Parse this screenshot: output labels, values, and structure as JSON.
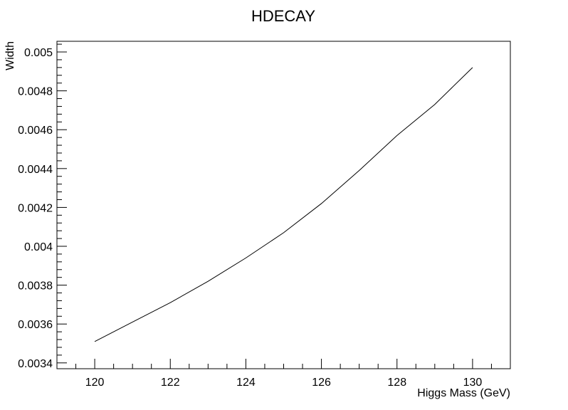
{
  "chart_data": {
    "type": "line",
    "title": "HDECAY",
    "xlabel": "Higgs Mass (GeV)",
    "ylabel": "Width",
    "xlim": [
      119.0,
      131.0
    ],
    "ylim": [
      0.00337,
      0.005055
    ],
    "xticks": [
      120,
      122,
      124,
      126,
      128,
      130
    ],
    "xtick_labels": [
      "120",
      "122",
      "124",
      "126",
      "128",
      "130"
    ],
    "yticks": [
      0.0034,
      0.0036,
      0.0038,
      0.004,
      0.0042,
      0.0044,
      0.0046,
      0.0048,
      0.005
    ],
    "ytick_labels": [
      "0.0034",
      "0.0036",
      "0.0038",
      "0.004",
      "0.0042",
      "0.0044",
      "0.0046",
      "0.0048",
      "0.005"
    ],
    "grid": false,
    "series": [
      {
        "x": [
          120,
          121,
          122,
          123,
          124,
          125,
          126,
          127,
          128,
          129,
          130
        ],
        "y": [
          0.00351,
          0.00361,
          0.00371,
          0.00382,
          0.00394,
          0.00407,
          0.00422,
          0.00439,
          0.00457,
          0.00473,
          0.00492
        ],
        "color": "#000000"
      }
    ]
  }
}
